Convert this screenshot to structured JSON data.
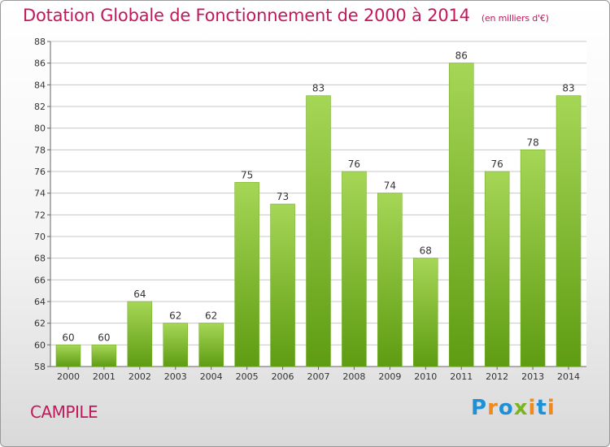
{
  "header": {
    "title": "Dotation Globale de Fonctionnement de 2000 à 2014",
    "subtitle": "(en milliers d'€)"
  },
  "footer": {
    "commune": "CAMPILE",
    "logo": "Proxiti"
  },
  "colors": {
    "title": "#c2185b",
    "bar_light": "#a6d656",
    "bar_dark": "#5e9c12",
    "grid": "#c8c8c8"
  },
  "chart_data": {
    "type": "bar",
    "title": "Dotation Globale de Fonctionnement de 2000 à 2014",
    "subtitle": "(en milliers d'€)",
    "xlabel": "",
    "ylabel": "",
    "categories": [
      "2000",
      "2001",
      "2002",
      "2003",
      "2004",
      "2005",
      "2006",
      "2007",
      "2008",
      "2009",
      "2010",
      "2011",
      "2012",
      "2013",
      "2014"
    ],
    "values": [
      60,
      60,
      64,
      62,
      62,
      75,
      73,
      83,
      76,
      74,
      68,
      86,
      76,
      78,
      83
    ],
    "ylim": [
      58,
      88
    ],
    "yticks": [
      58,
      60,
      62,
      64,
      66,
      68,
      70,
      72,
      74,
      76,
      78,
      80,
      82,
      84,
      86,
      88
    ],
    "grid": true,
    "legend": "none"
  }
}
